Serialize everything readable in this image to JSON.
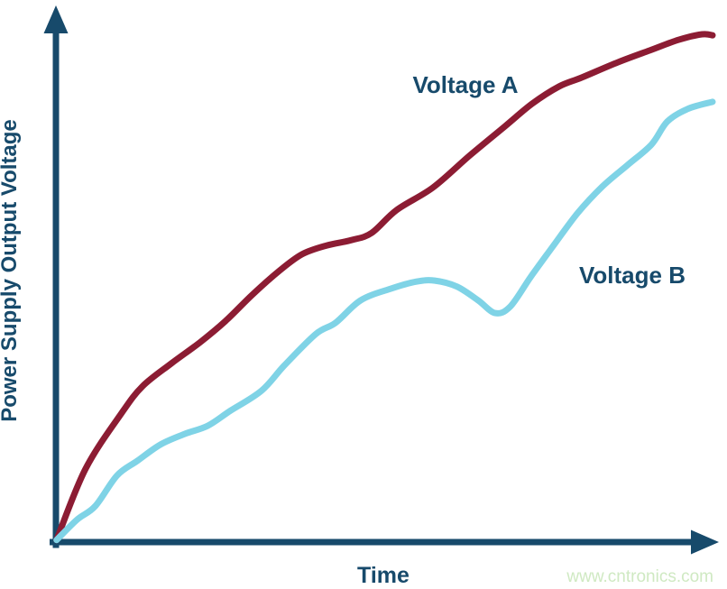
{
  "figure": {
    "ylabel": "Power Supply Output Voltage",
    "xlabel": "Time",
    "series_a_label": "Voltage A",
    "series_b_label": "Voltage B",
    "watermark": "www.cntronics.com"
  },
  "colors": {
    "axis": "#174a6b",
    "text": "#174a6b",
    "voltage_a": "#8c1c33",
    "voltage_b": "#7fd3e6",
    "watermark": "#cfe9c2",
    "background": "#ffffff"
  },
  "chart_data": {
    "type": "line",
    "title": "",
    "xlabel": "Time",
    "ylabel": "Power Supply Output Voltage",
    "axes_numeric": false,
    "tick_labels": "none (qualitative sketch, arrow axes)",
    "grid": false,
    "legend_position": "inline annotations next to each curve",
    "xlim": [
      0,
      100
    ],
    "ylim": [
      0,
      100
    ],
    "series": [
      {
        "name": "Voltage A",
        "color": "#8c1c33",
        "shape_note": "monotonic rise with a shoulder/plateau around x=41-48 and slight flattening at the very end",
        "points": [
          [
            0.1,
            0.4
          ],
          [
            4.5,
            14.4
          ],
          [
            10.0,
            25.4
          ],
          [
            13.2,
            30.7
          ],
          [
            17.6,
            35.2
          ],
          [
            22.0,
            39.4
          ],
          [
            25.8,
            43.5
          ],
          [
            29.9,
            48.7
          ],
          [
            34.1,
            53.5
          ],
          [
            37.5,
            56.7
          ],
          [
            41.2,
            58.4
          ],
          [
            45.1,
            59.5
          ],
          [
            48.1,
            60.9
          ],
          [
            51.9,
            65.4
          ],
          [
            57.4,
            69.8
          ],
          [
            62.9,
            76.0
          ],
          [
            68.4,
            81.9
          ],
          [
            72.5,
            86.3
          ],
          [
            76.6,
            89.7
          ],
          [
            80.1,
            91.5
          ],
          [
            85.6,
            94.5
          ],
          [
            90.4,
            96.8
          ],
          [
            94.8,
            98.9
          ],
          [
            98.4,
            100.0
          ],
          [
            100,
            99.8
          ]
        ]
      },
      {
        "name": "Voltage B",
        "color": "#7fd3e6",
        "shape_note": "rises below Voltage A, small shoulder near x=20-23, local hump peaking near x=58 then dip (trough near x=67) and steep recovery to end",
        "points": [
          [
            0.1,
            0.4
          ],
          [
            3.2,
            4.4
          ],
          [
            6.0,
            7.1
          ],
          [
            9.3,
            13.1
          ],
          [
            12.4,
            16.0
          ],
          [
            15.9,
            19.2
          ],
          [
            19.6,
            21.3
          ],
          [
            23.1,
            22.9
          ],
          [
            26.5,
            25.8
          ],
          [
            31.3,
            29.8
          ],
          [
            34.8,
            34.8
          ],
          [
            39.6,
            41.0
          ],
          [
            42.6,
            43.2
          ],
          [
            46.4,
            47.6
          ],
          [
            51.0,
            49.9
          ],
          [
            54.9,
            51.3
          ],
          [
            57.7,
            51.5
          ],
          [
            61.1,
            50.3
          ],
          [
            64.3,
            47.6
          ],
          [
            66.9,
            45.1
          ],
          [
            69.2,
            46.4
          ],
          [
            72.3,
            52.2
          ],
          [
            75.5,
            57.9
          ],
          [
            79.4,
            64.7
          ],
          [
            83.2,
            70.0
          ],
          [
            87.0,
            74.2
          ],
          [
            90.7,
            78.3
          ],
          [
            93.1,
            82.8
          ],
          [
            96.2,
            85.3
          ],
          [
            100,
            86.7
          ]
        ]
      }
    ]
  }
}
